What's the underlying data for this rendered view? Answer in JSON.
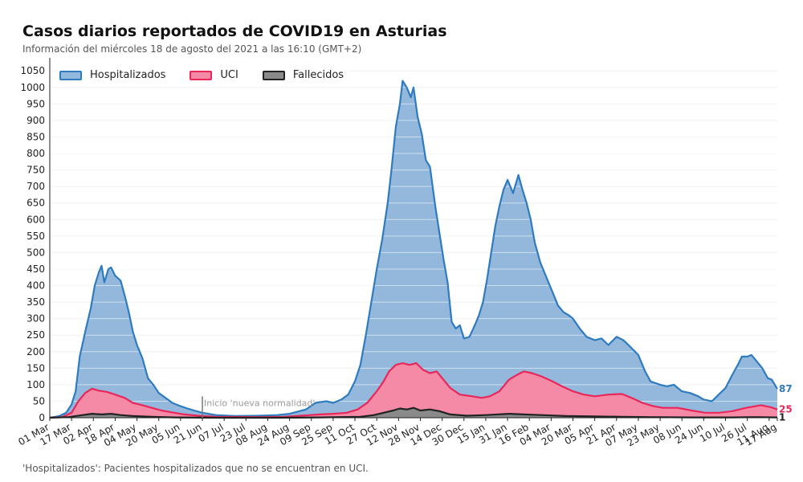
{
  "title": "Casos diarios reportados de COVID19 en Asturias",
  "subtitle": "Información del miércoles 18 de agosto del 2021 a las 16:10 (GMT+2)",
  "footnote": "'Hospitalizados': Pacientes hospitalizados que no se encuentran en UCI.",
  "chart_data": {
    "type": "area",
    "ylim": [
      0,
      1070
    ],
    "y_ticks": [
      0,
      50,
      100,
      150,
      200,
      250,
      300,
      350,
      400,
      450,
      500,
      550,
      600,
      650,
      700,
      750,
      800,
      850,
      900,
      950,
      1000,
      1050
    ],
    "x_ticks": [
      {
        "date": "2020-03-01",
        "label": "01 Mar"
      },
      {
        "date": "2020-03-17",
        "label": "17 Mar"
      },
      {
        "date": "2020-04-02",
        "label": "02 Apr"
      },
      {
        "date": "2020-04-18",
        "label": "18 Apr"
      },
      {
        "date": "2020-05-04",
        "label": "04 May"
      },
      {
        "date": "2020-05-20",
        "label": "20 May"
      },
      {
        "date": "2020-06-05",
        "label": "05 Jun"
      },
      {
        "date": "2020-06-21",
        "label": "21 Jun"
      },
      {
        "date": "2020-07-07",
        "label": "07 Jul"
      },
      {
        "date": "2020-07-23",
        "label": "23 Jul"
      },
      {
        "date": "2020-08-08",
        "label": "08 Aug"
      },
      {
        "date": "2020-08-24",
        "label": "24 Aug"
      },
      {
        "date": "2020-09-09",
        "label": "09 Sep"
      },
      {
        "date": "2020-09-25",
        "label": "25 Sep"
      },
      {
        "date": "2020-10-11",
        "label": "11 Oct"
      },
      {
        "date": "2020-10-27",
        "label": "27 Oct"
      },
      {
        "date": "2020-11-12",
        "label": "12 Nov"
      },
      {
        "date": "2020-11-28",
        "label": "28 Nov"
      },
      {
        "date": "2020-12-14",
        "label": "14 Dec"
      },
      {
        "date": "2020-12-30",
        "label": "30 Dec"
      },
      {
        "date": "2021-01-15",
        "label": "15 Jan"
      },
      {
        "date": "2021-01-31",
        "label": "31 Jan"
      },
      {
        "date": "2021-02-16",
        "label": "16 Feb"
      },
      {
        "date": "2021-03-04",
        "label": "04 Mar"
      },
      {
        "date": "2021-03-20",
        "label": "20 Mar"
      },
      {
        "date": "2021-04-05",
        "label": "05 Apr"
      },
      {
        "date": "2021-04-21",
        "label": "21 Apr"
      },
      {
        "date": "2021-05-07",
        "label": "07 May"
      },
      {
        "date": "2021-05-23",
        "label": "23 May"
      },
      {
        "date": "2021-06-08",
        "label": "08 Jun"
      },
      {
        "date": "2021-06-24",
        "label": "24 Jun"
      },
      {
        "date": "2021-07-10",
        "label": "10 Jul"
      },
      {
        "date": "2021-07-26",
        "label": "26 Jul"
      },
      {
        "date": "2021-08-11",
        "label": "11 Aug"
      },
      {
        "date": "2021-08-17",
        "label": "17 Aug"
      }
    ],
    "x_range": [
      "2020-03-01",
      "2021-08-17"
    ],
    "annotation": {
      "date": "2020-06-21",
      "label": "Inicio 'nueva normalidad'",
      "y": 65
    },
    "legend_position": "top-left",
    "series": [
      {
        "name": "Hospitalizados",
        "color": "#2f7bbf",
        "fill": "#93b8dc",
        "end_label": "87",
        "points": [
          [
            "2020-03-01",
            0
          ],
          [
            "2020-03-08",
            5
          ],
          [
            "2020-03-13",
            15
          ],
          [
            "2020-03-17",
            40
          ],
          [
            "2020-03-20",
            80
          ],
          [
            "2020-03-23",
            185
          ],
          [
            "2020-03-27",
            260
          ],
          [
            "2020-03-31",
            330
          ],
          [
            "2020-04-03",
            400
          ],
          [
            "2020-04-06",
            440
          ],
          [
            "2020-04-08",
            460
          ],
          [
            "2020-04-10",
            410
          ],
          [
            "2020-04-13",
            450
          ],
          [
            "2020-04-15",
            455
          ],
          [
            "2020-04-18",
            430
          ],
          [
            "2020-04-22",
            415
          ],
          [
            "2020-04-25",
            370
          ],
          [
            "2020-04-28",
            320
          ],
          [
            "2020-05-01",
            260
          ],
          [
            "2020-05-04",
            220
          ],
          [
            "2020-05-08",
            180
          ],
          [
            "2020-05-12",
            120
          ],
          [
            "2020-05-16",
            100
          ],
          [
            "2020-05-20",
            75
          ],
          [
            "2020-05-25",
            60
          ],
          [
            "2020-05-30",
            45
          ],
          [
            "2020-06-05",
            35
          ],
          [
            "2020-06-10",
            28
          ],
          [
            "2020-06-15",
            22
          ],
          [
            "2020-06-21",
            15
          ],
          [
            "2020-07-01",
            8
          ],
          [
            "2020-07-15",
            5
          ],
          [
            "2020-08-01",
            6
          ],
          [
            "2020-08-15",
            8
          ],
          [
            "2020-08-24",
            12
          ],
          [
            "2020-09-05",
            25
          ],
          [
            "2020-09-12",
            45
          ],
          [
            "2020-09-20",
            50
          ],
          [
            "2020-09-25",
            45
          ],
          [
            "2020-10-01",
            55
          ],
          [
            "2020-10-06",
            70
          ],
          [
            "2020-10-11",
            110
          ],
          [
            "2020-10-15",
            160
          ],
          [
            "2020-10-19",
            250
          ],
          [
            "2020-10-23",
            350
          ],
          [
            "2020-10-27",
            450
          ],
          [
            "2020-10-31",
            540
          ],
          [
            "2020-11-04",
            650
          ],
          [
            "2020-11-07",
            760
          ],
          [
            "2020-11-10",
            880
          ],
          [
            "2020-11-13",
            950
          ],
          [
            "2020-11-15",
            1020
          ],
          [
            "2020-11-18",
            1000
          ],
          [
            "2020-11-21",
            970
          ],
          [
            "2020-11-23",
            1000
          ],
          [
            "2020-11-26",
            910
          ],
          [
            "2020-11-29",
            860
          ],
          [
            "2020-12-02",
            780
          ],
          [
            "2020-12-05",
            760
          ],
          [
            "2020-12-09",
            640
          ],
          [
            "2020-12-12",
            560
          ],
          [
            "2020-12-15",
            480
          ],
          [
            "2020-12-18",
            410
          ],
          [
            "2020-12-21",
            290
          ],
          [
            "2020-12-24",
            270
          ],
          [
            "2020-12-27",
            280
          ],
          [
            "2020-12-30",
            240
          ],
          [
            "2021-01-03",
            245
          ],
          [
            "2021-01-07",
            280
          ],
          [
            "2021-01-10",
            310
          ],
          [
            "2021-01-13",
            350
          ],
          [
            "2021-01-16",
            420
          ],
          [
            "2021-01-19",
            500
          ],
          [
            "2021-01-22",
            580
          ],
          [
            "2021-01-25",
            640
          ],
          [
            "2021-01-28",
            690
          ],
          [
            "2021-01-31",
            720
          ],
          [
            "2021-02-02",
            700
          ],
          [
            "2021-02-04",
            680
          ],
          [
            "2021-02-08",
            735
          ],
          [
            "2021-02-11",
            690
          ],
          [
            "2021-02-14",
            650
          ],
          [
            "2021-02-17",
            600
          ],
          [
            "2021-02-20",
            530
          ],
          [
            "2021-02-24",
            470
          ],
          [
            "2021-03-01",
            420
          ],
          [
            "2021-03-05",
            380
          ],
          [
            "2021-03-09",
            340
          ],
          [
            "2021-03-13",
            320
          ],
          [
            "2021-03-17",
            310
          ],
          [
            "2021-03-20",
            300
          ],
          [
            "2021-03-25",
            270
          ],
          [
            "2021-03-30",
            245
          ],
          [
            "2021-04-05",
            235
          ],
          [
            "2021-04-10",
            240
          ],
          [
            "2021-04-15",
            220
          ],
          [
            "2021-04-21",
            245
          ],
          [
            "2021-04-26",
            235
          ],
          [
            "2021-05-01",
            215
          ],
          [
            "2021-05-07",
            190
          ],
          [
            "2021-05-12",
            140
          ],
          [
            "2021-05-16",
            110
          ],
          [
            "2021-05-23",
            100
          ],
          [
            "2021-05-28",
            95
          ],
          [
            "2021-06-02",
            100
          ],
          [
            "2021-06-08",
            80
          ],
          [
            "2021-06-14",
            75
          ],
          [
            "2021-06-20",
            65
          ],
          [
            "2021-06-24",
            55
          ],
          [
            "2021-06-30",
            50
          ],
          [
            "2021-07-05",
            70
          ],
          [
            "2021-07-10",
            90
          ],
          [
            "2021-07-15",
            130
          ],
          [
            "2021-07-19",
            160
          ],
          [
            "2021-07-22",
            185
          ],
          [
            "2021-07-26",
            185
          ],
          [
            "2021-07-29",
            190
          ],
          [
            "2021-08-02",
            170
          ],
          [
            "2021-08-06",
            150
          ],
          [
            "2021-08-10",
            120
          ],
          [
            "2021-08-13",
            115
          ],
          [
            "2021-08-17",
            87
          ]
        ]
      },
      {
        "name": "UCI",
        "color": "#e8285a",
        "fill": "#f48aa6",
        "end_label": "25",
        "points": [
          [
            "2020-03-01",
            0
          ],
          [
            "2020-03-10",
            2
          ],
          [
            "2020-03-17",
            15
          ],
          [
            "2020-03-22",
            50
          ],
          [
            "2020-03-27",
            75
          ],
          [
            "2020-04-01",
            88
          ],
          [
            "2020-04-06",
            82
          ],
          [
            "2020-04-12",
            78
          ],
          [
            "2020-04-18",
            70
          ],
          [
            "2020-04-25",
            60
          ],
          [
            "2020-05-01",
            45
          ],
          [
            "2020-05-08",
            38
          ],
          [
            "2020-05-15",
            30
          ],
          [
            "2020-05-22",
            22
          ],
          [
            "2020-05-30",
            16
          ],
          [
            "2020-06-08",
            10
          ],
          [
            "2020-06-18",
            6
          ],
          [
            "2020-07-01",
            3
          ],
          [
            "2020-08-01",
            2
          ],
          [
            "2020-08-20",
            3
          ],
          [
            "2020-09-01",
            6
          ],
          [
            "2020-09-15",
            10
          ],
          [
            "2020-09-25",
            12
          ],
          [
            "2020-10-05",
            15
          ],
          [
            "2020-10-13",
            25
          ],
          [
            "2020-10-20",
            45
          ],
          [
            "2020-10-27",
            80
          ],
          [
            "2020-11-01",
            110
          ],
          [
            "2020-11-05",
            140
          ],
          [
            "2020-11-10",
            160
          ],
          [
            "2020-11-15",
            165
          ],
          [
            "2020-11-20",
            160
          ],
          [
            "2020-11-25",
            165
          ],
          [
            "2020-11-30",
            145
          ],
          [
            "2020-12-05",
            135
          ],
          [
            "2020-12-10",
            140
          ],
          [
            "2020-12-15",
            115
          ],
          [
            "2020-12-20",
            90
          ],
          [
            "2020-12-27",
            70
          ],
          [
            "2021-01-05",
            65
          ],
          [
            "2021-01-12",
            60
          ],
          [
            "2021-01-18",
            65
          ],
          [
            "2021-01-25",
            80
          ],
          [
            "2021-02-01",
            115
          ],
          [
            "2021-02-07",
            130
          ],
          [
            "2021-02-12",
            140
          ],
          [
            "2021-02-18",
            135
          ],
          [
            "2021-02-25",
            125
          ],
          [
            "2021-03-05",
            110
          ],
          [
            "2021-03-12",
            95
          ],
          [
            "2021-03-20",
            80
          ],
          [
            "2021-03-28",
            70
          ],
          [
            "2021-04-05",
            65
          ],
          [
            "2021-04-15",
            70
          ],
          [
            "2021-04-25",
            72
          ],
          [
            "2021-05-02",
            60
          ],
          [
            "2021-05-10",
            45
          ],
          [
            "2021-05-18",
            35
          ],
          [
            "2021-05-25",
            30
          ],
          [
            "2021-06-05",
            30
          ],
          [
            "2021-06-15",
            22
          ],
          [
            "2021-06-25",
            15
          ],
          [
            "2021-07-05",
            15
          ],
          [
            "2021-07-15",
            20
          ],
          [
            "2021-07-25",
            30
          ],
          [
            "2021-08-05",
            38
          ],
          [
            "2021-08-12",
            32
          ],
          [
            "2021-08-17",
            25
          ]
        ]
      },
      {
        "name": "Fallecidos",
        "color": "#222222",
        "fill": "#8a8a8a",
        "end_label": "1",
        "points": [
          [
            "2020-03-01",
            0
          ],
          [
            "2020-03-15",
            2
          ],
          [
            "2020-03-25",
            8
          ],
          [
            "2020-04-01",
            12
          ],
          [
            "2020-04-08",
            10
          ],
          [
            "2020-04-15",
            12
          ],
          [
            "2020-04-22",
            8
          ],
          [
            "2020-05-01",
            5
          ],
          [
            "2020-05-15",
            3
          ],
          [
            "2020-06-01",
            1
          ],
          [
            "2020-07-01",
            0
          ],
          [
            "2020-08-15",
            0
          ],
          [
            "2020-09-15",
            1
          ],
          [
            "2020-10-15",
            3
          ],
          [
            "2020-10-25",
            8
          ],
          [
            "2020-11-01",
            15
          ],
          [
            "2020-11-08",
            22
          ],
          [
            "2020-11-13",
            28
          ],
          [
            "2020-11-18",
            25
          ],
          [
            "2020-11-23",
            30
          ],
          [
            "2020-11-28",
            22
          ],
          [
            "2020-12-05",
            25
          ],
          [
            "2020-12-12",
            20
          ],
          [
            "2020-12-20",
            10
          ],
          [
            "2021-01-01",
            6
          ],
          [
            "2021-01-15",
            8
          ],
          [
            "2021-02-01",
            12
          ],
          [
            "2021-02-12",
            10
          ],
          [
            "2021-02-25",
            8
          ],
          [
            "2021-03-15",
            5
          ],
          [
            "2021-04-05",
            4
          ],
          [
            "2021-04-25",
            3
          ],
          [
            "2021-05-15",
            2
          ],
          [
            "2021-06-15",
            1
          ],
          [
            "2021-07-15",
            1
          ],
          [
            "2021-08-01",
            2
          ],
          [
            "2021-08-17",
            1
          ]
        ]
      }
    ]
  }
}
